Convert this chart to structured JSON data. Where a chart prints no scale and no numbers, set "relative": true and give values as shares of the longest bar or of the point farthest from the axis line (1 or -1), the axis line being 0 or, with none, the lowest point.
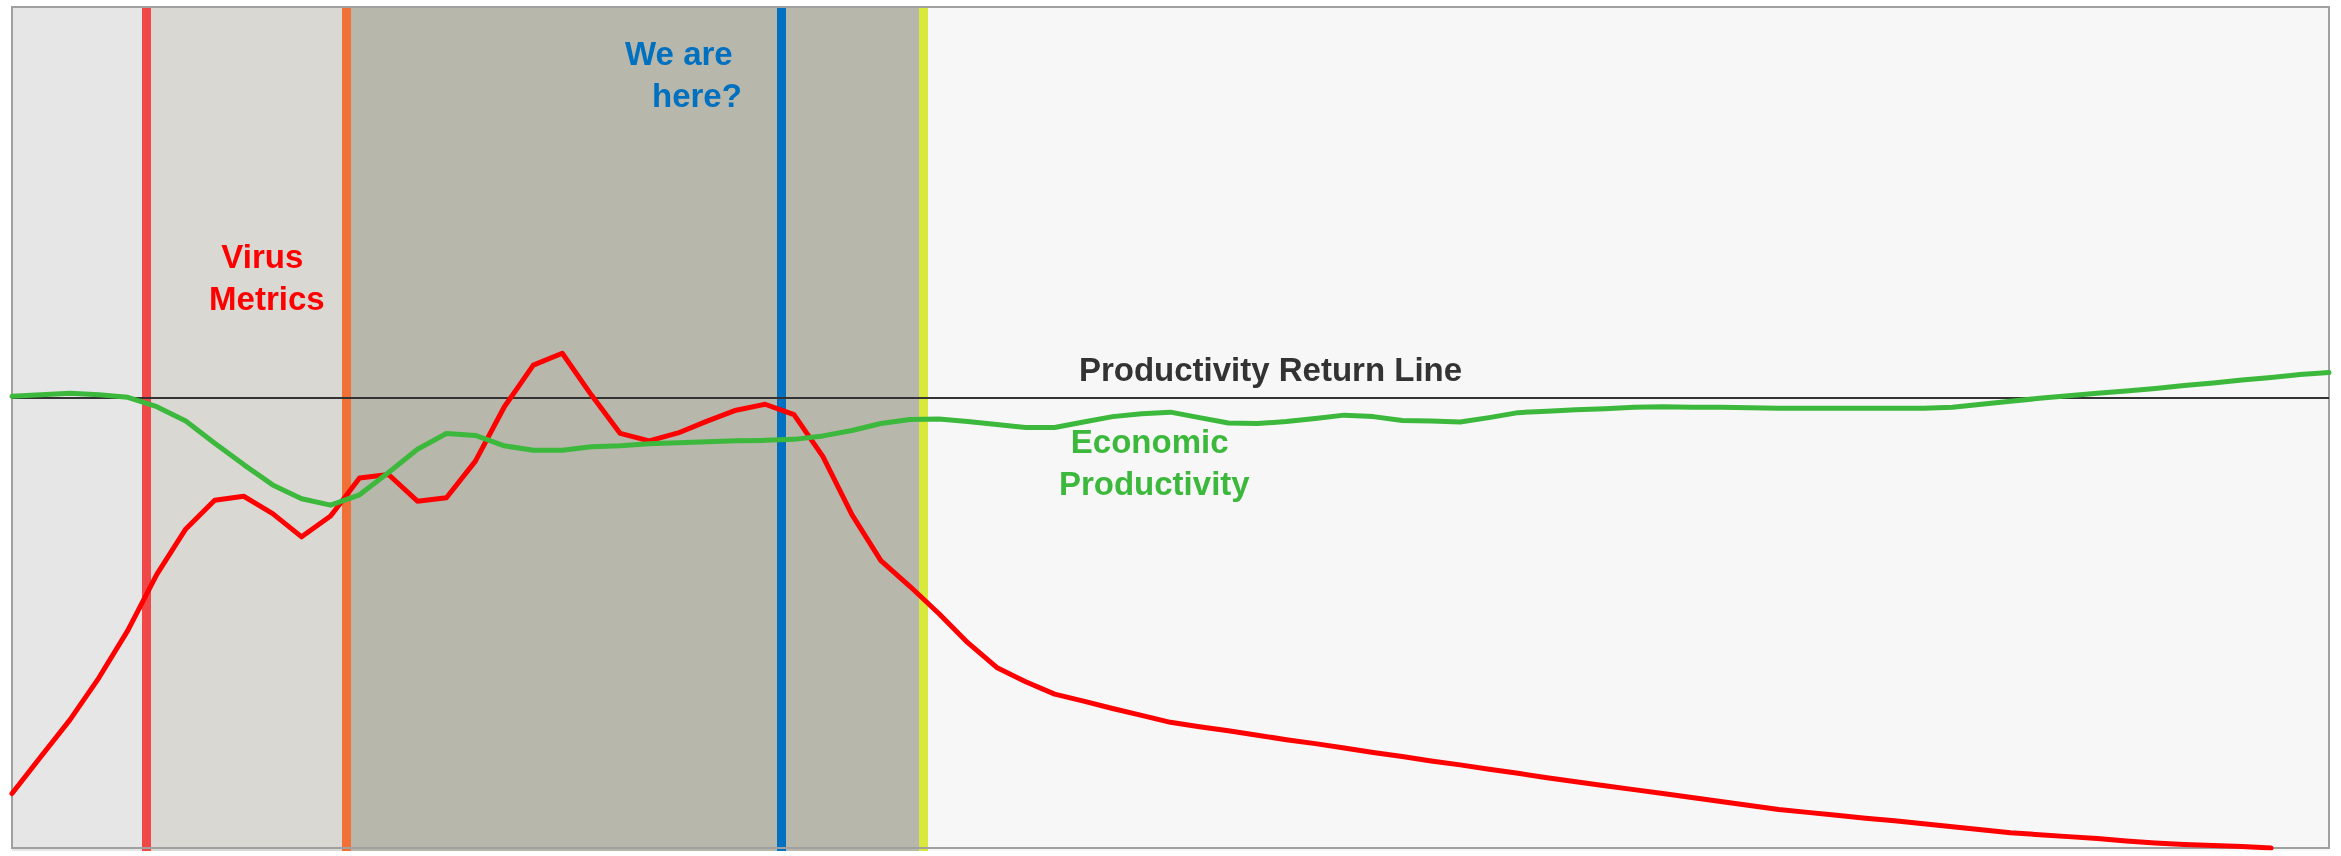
{
  "chart_data": {
    "type": "line",
    "relative": true,
    "marker": "none",
    "categories": [
      null,
      null,
      null,
      null,
      null,
      null,
      null,
      null,
      null,
      null,
      null,
      null,
      null,
      null,
      null,
      null,
      null,
      null,
      null,
      null,
      null,
      null,
      null,
      null,
      null,
      null,
      null,
      null,
      null,
      null,
      null,
      null,
      null,
      null,
      null,
      null,
      null,
      null,
      null,
      null,
      null,
      null,
      null,
      null,
      null,
      null,
      null,
      null,
      null,
      null,
      null,
      null,
      null,
      null,
      null,
      null,
      null,
      null,
      null,
      null,
      null,
      null,
      null,
      null,
      null,
      null,
      null,
      null,
      null,
      null,
      null,
      null,
      null,
      null,
      null,
      null,
      null,
      null,
      null,
      null,
      null
    ],
    "series": [
      {
        "color": "#ff0000",
        "values": [
          0.11,
          0.185,
          0.259,
          0.344,
          0.44,
          0.553,
          0.645,
          0.703,
          0.711,
          0.676,
          0.629,
          0.671,
          0.748,
          0.755,
          0.701,
          0.708,
          0.782,
          0.892,
          0.976,
          1,
          0.916,
          0.838,
          0.823,
          0.839,
          0.863,
          0.885,
          0.897,
          0.876,
          0.791,
          0.674,
          0.581,
          0.529,
          0.474,
          0.415,
          0.365,
          0.336,
          0.311,
          0.297,
          0.282,
          0.268,
          0.254,
          0.245,
          0.237,
          0.228,
          0.219,
          0.211,
          0.202,
          0.193,
          0.185,
          0.176,
          0.168,
          0.159,
          0.151,
          0.142,
          0.134,
          0.126,
          0.118,
          0.11,
          0.102,
          0.094,
          0.086,
          0.078,
          0.072,
          0.066,
          0.06,
          0.055,
          0.049,
          0.043,
          0.037,
          0.031,
          0.027,
          0.023,
          0.019,
          0.014,
          0.01,
          0.007,
          0.005,
          0.003,
          0,
          null,
          null
        ]
      },
      {
        "color": "#3cb83c",
        "values": [
          0.913,
          0.916,
          0.919,
          0.916,
          0.911,
          0.892,
          0.863,
          0.818,
          0.775,
          0.734,
          0.706,
          0.693,
          0.714,
          0.759,
          0.806,
          0.838,
          0.834,
          0.813,
          0.804,
          0.804,
          0.811,
          0.813,
          0.817,
          0.819,
          0.821,
          0.823,
          0.824,
          0.826,
          0.833,
          0.844,
          0.858,
          0.866,
          0.867,
          0.862,
          0.856,
          0.85,
          0.85,
          0.861,
          0.872,
          0.878,
          0.881,
          0.87,
          0.859,
          0.858,
          0.862,
          0.868,
          0.875,
          0.872,
          0.864,
          0.863,
          0.861,
          0.87,
          0.88,
          0.883,
          0.886,
          0.888,
          0.891,
          0.892,
          0.891,
          0.891,
          0.89,
          0.889,
          0.889,
          0.889,
          0.889,
          0.889,
          0.889,
          0.891,
          0.897,
          0.903,
          0.909,
          0.914,
          0.919,
          0.924,
          0.929,
          0.935,
          0.94,
          0.946,
          0.951,
          0.957,
          0.961
        ]
      }
    ],
    "ref_lines": [
      {
        "axis": "y",
        "value": 0.913,
        "label": "Productivity Return Line",
        "color": "#333333"
      }
    ],
    "annotations": [
      "Virus Metrics",
      "We are here?",
      "Economic Productivity"
    ]
  }
}
